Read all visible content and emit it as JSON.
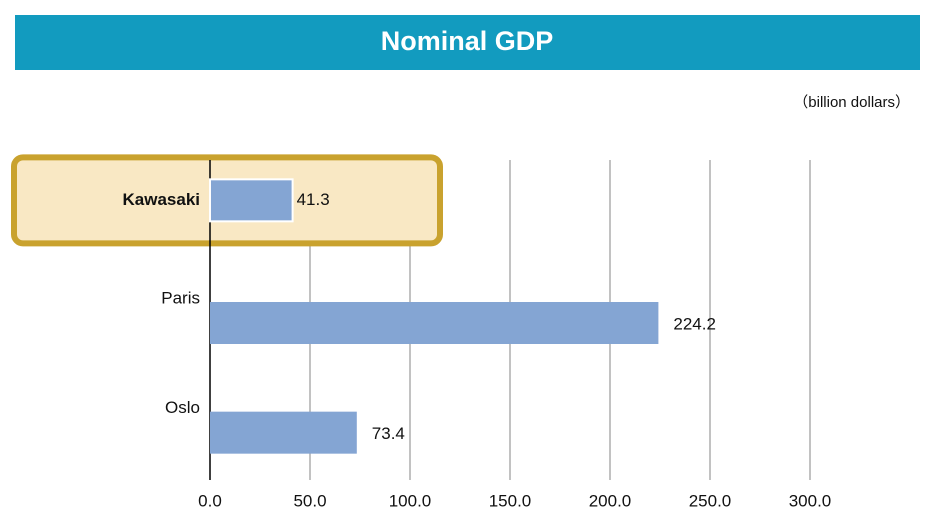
{
  "chart_data": {
    "type": "hbar",
    "title": "Nominal GDP",
    "unit_label": "（billion dollars）",
    "categories": [
      "Kawasaki",
      "Paris",
      "Oslo"
    ],
    "values": [
      41.3,
      224.2,
      73.4
    ],
    "color": "#84a5d3",
    "highlight": "Kawasaki",
    "xlim": [
      0,
      300
    ],
    "xticks": [
      {
        "value": 0,
        "label": "0.0"
      },
      {
        "value": 50,
        "label": "50.0"
      },
      {
        "value": 100,
        "label": "100.0"
      },
      {
        "value": 150,
        "label": "150.0"
      },
      {
        "value": 200,
        "label": "200.0"
      },
      {
        "value": 250,
        "label": "250.0"
      },
      {
        "value": 300,
        "label": "300.0"
      }
    ],
    "grid": true
  }
}
